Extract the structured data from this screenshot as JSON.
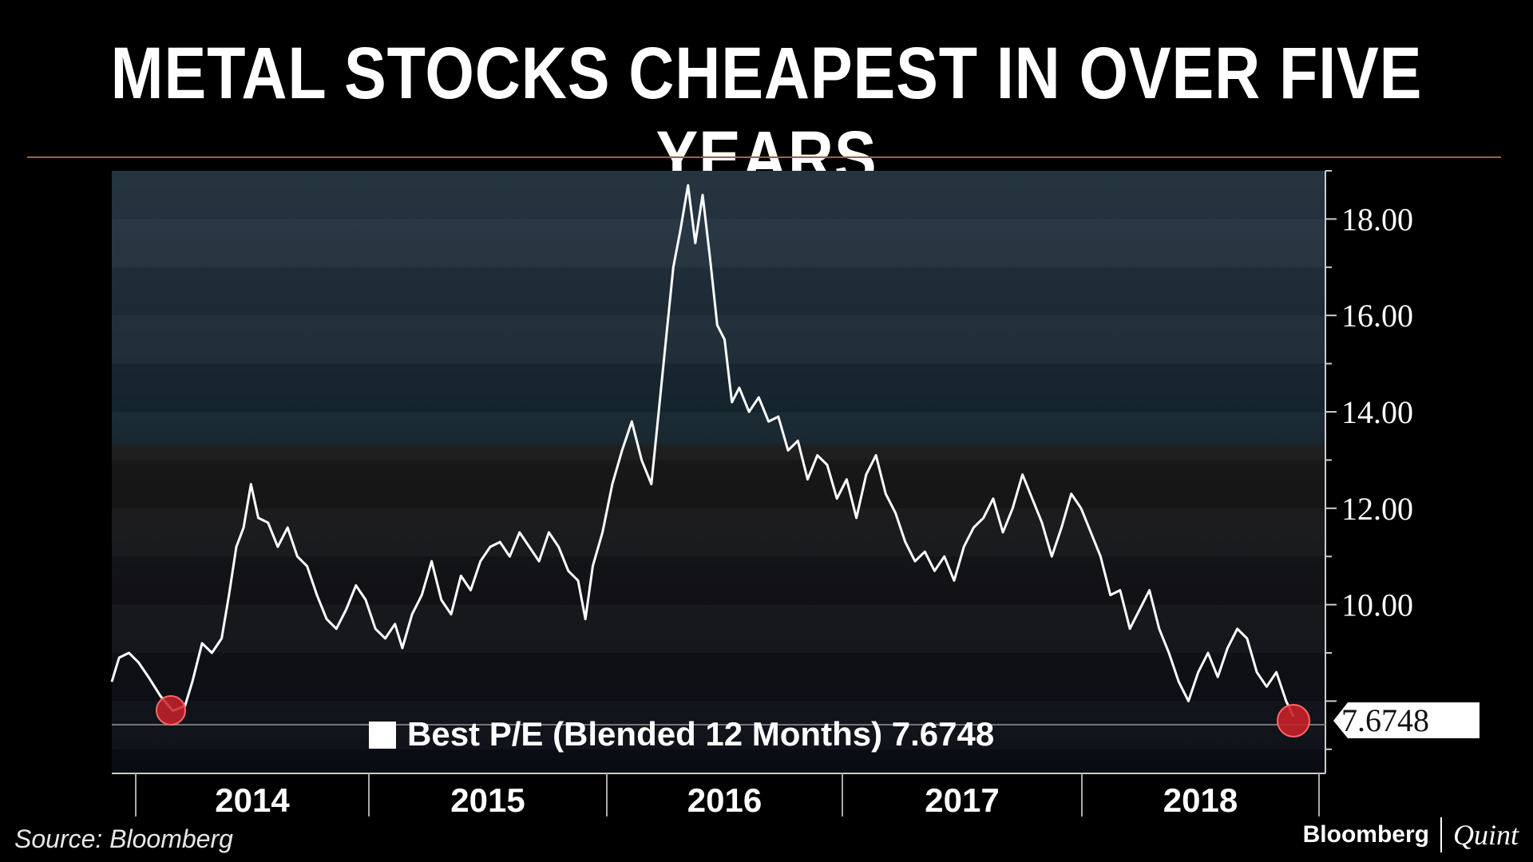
{
  "header": {
    "title": "METAL STOCKS CHEAPEST IN OVER FIVE YEARS"
  },
  "footer": {
    "source": "Source: Bloomberg",
    "brand_primary": "Bloomberg",
    "brand_secondary": "Quint"
  },
  "colors": {
    "line": "#ffffff",
    "marker": "#c8202a",
    "background": "#000000",
    "divider": "#8a6a45"
  },
  "chart_data": {
    "type": "line",
    "title": "METAL STOCKS CHEAPEST IN OVER FIVE YEARS",
    "xlabel": "",
    "ylabel": "",
    "x_ticks": [
      "2014",
      "2015",
      "2016",
      "2017",
      "2018"
    ],
    "y_ticks": [
      "10.00",
      "12.00",
      "14.00",
      "16.00",
      "18.00"
    ],
    "ylim": [
      6.5,
      19.0
    ],
    "grid": false,
    "legend": {
      "position": "bottom-center",
      "text": "Best P/E (Blended 12 Months) 7.6748"
    },
    "last_value_label": "7.6748",
    "markers": [
      {
        "x": 2013.5,
        "y": 7.8
      },
      {
        "x": 2018.9,
        "y": 7.6748
      }
    ],
    "series": [
      {
        "name": "Best P/E (Blended 12 Months)",
        "points": [
          [
            2013.25,
            8.4
          ],
          [
            2013.28,
            8.9
          ],
          [
            2013.32,
            9.0
          ],
          [
            2013.36,
            8.8
          ],
          [
            2013.4,
            8.5
          ],
          [
            2013.45,
            8.1
          ],
          [
            2013.5,
            7.8
          ],
          [
            2013.55,
            7.9
          ],
          [
            2013.58,
            8.4
          ],
          [
            2013.62,
            9.2
          ],
          [
            2013.66,
            9.0
          ],
          [
            2013.7,
            9.3
          ],
          [
            2013.73,
            10.2
          ],
          [
            2013.76,
            11.2
          ],
          [
            2013.79,
            11.6
          ],
          [
            2013.82,
            12.5
          ],
          [
            2013.85,
            11.8
          ],
          [
            2013.89,
            11.7
          ],
          [
            2013.93,
            11.2
          ],
          [
            2013.97,
            11.6
          ],
          [
            2014.01,
            11.0
          ],
          [
            2014.05,
            10.8
          ],
          [
            2014.09,
            10.2
          ],
          [
            2014.13,
            9.7
          ],
          [
            2014.17,
            9.5
          ],
          [
            2014.21,
            9.9
          ],
          [
            2014.25,
            10.4
          ],
          [
            2014.29,
            10.1
          ],
          [
            2014.33,
            9.5
          ],
          [
            2014.37,
            9.3
          ],
          [
            2014.41,
            9.6
          ],
          [
            2014.44,
            9.1
          ],
          [
            2014.48,
            9.8
          ],
          [
            2014.52,
            10.2
          ],
          [
            2014.56,
            10.9
          ],
          [
            2014.6,
            10.1
          ],
          [
            2014.64,
            9.8
          ],
          [
            2014.68,
            10.6
          ],
          [
            2014.72,
            10.3
          ],
          [
            2014.76,
            10.9
          ],
          [
            2014.8,
            11.2
          ],
          [
            2014.84,
            11.3
          ],
          [
            2014.88,
            11.0
          ],
          [
            2014.92,
            11.5
          ],
          [
            2014.96,
            11.2
          ],
          [
            2015.0,
            10.9
          ],
          [
            2015.04,
            11.5
          ],
          [
            2015.08,
            11.2
          ],
          [
            2015.12,
            10.7
          ],
          [
            2015.16,
            10.5
          ],
          [
            2015.19,
            9.7
          ],
          [
            2015.22,
            10.8
          ],
          [
            2015.26,
            11.5
          ],
          [
            2015.3,
            12.5
          ],
          [
            2015.34,
            13.2
          ],
          [
            2015.38,
            13.8
          ],
          [
            2015.42,
            13.0
          ],
          [
            2015.46,
            12.5
          ],
          [
            2015.49,
            14.0
          ],
          [
            2015.52,
            15.5
          ],
          [
            2015.55,
            17.0
          ],
          [
            2015.58,
            17.8
          ],
          [
            2015.61,
            18.7
          ],
          [
            2015.64,
            17.5
          ],
          [
            2015.67,
            18.5
          ],
          [
            2015.7,
            17.2
          ],
          [
            2015.73,
            15.8
          ],
          [
            2015.76,
            15.5
          ],
          [
            2015.79,
            14.2
          ],
          [
            2015.82,
            14.5
          ],
          [
            2015.86,
            14.0
          ],
          [
            2015.9,
            14.3
          ],
          [
            2015.94,
            13.8
          ],
          [
            2015.98,
            13.9
          ],
          [
            2016.02,
            13.2
          ],
          [
            2016.06,
            13.4
          ],
          [
            2016.1,
            12.6
          ],
          [
            2016.14,
            13.1
          ],
          [
            2016.18,
            12.9
          ],
          [
            2016.22,
            12.2
          ],
          [
            2016.26,
            12.6
          ],
          [
            2016.3,
            11.8
          ],
          [
            2016.34,
            12.7
          ],
          [
            2016.38,
            13.1
          ],
          [
            2016.42,
            12.3
          ],
          [
            2016.46,
            11.9
          ],
          [
            2016.5,
            11.3
          ],
          [
            2016.54,
            10.9
          ],
          [
            2016.58,
            11.1
          ],
          [
            2016.62,
            10.7
          ],
          [
            2016.66,
            11.0
          ],
          [
            2016.7,
            10.5
          ],
          [
            2016.74,
            11.2
          ],
          [
            2016.78,
            11.6
          ],
          [
            2016.82,
            11.8
          ],
          [
            2016.86,
            12.2
          ],
          [
            2016.9,
            11.5
          ],
          [
            2016.94,
            12.0
          ],
          [
            2016.98,
            12.7
          ],
          [
            2017.02,
            12.2
          ],
          [
            2017.06,
            11.7
          ],
          [
            2017.1,
            11.0
          ],
          [
            2017.14,
            11.6
          ],
          [
            2017.18,
            12.3
          ],
          [
            2017.22,
            12.0
          ],
          [
            2017.26,
            11.5
          ],
          [
            2017.3,
            11.0
          ],
          [
            2017.34,
            10.2
          ],
          [
            2017.38,
            10.3
          ],
          [
            2017.42,
            9.5
          ],
          [
            2017.46,
            9.9
          ],
          [
            2017.5,
            10.3
          ],
          [
            2017.54,
            9.5
          ],
          [
            2017.58,
            9.0
          ],
          [
            2017.62,
            8.4
          ],
          [
            2017.66,
            8.0
          ],
          [
            2017.7,
            8.6
          ],
          [
            2017.74,
            9.0
          ],
          [
            2017.78,
            8.5
          ],
          [
            2017.82,
            9.1
          ],
          [
            2017.86,
            9.5
          ],
          [
            2017.9,
            9.3
          ],
          [
            2017.94,
            8.6
          ],
          [
            2017.98,
            8.3
          ],
          [
            2018.02,
            8.6
          ],
          [
            2018.06,
            8.0
          ],
          [
            2018.09,
            7.6748
          ]
        ]
      }
    ]
  }
}
